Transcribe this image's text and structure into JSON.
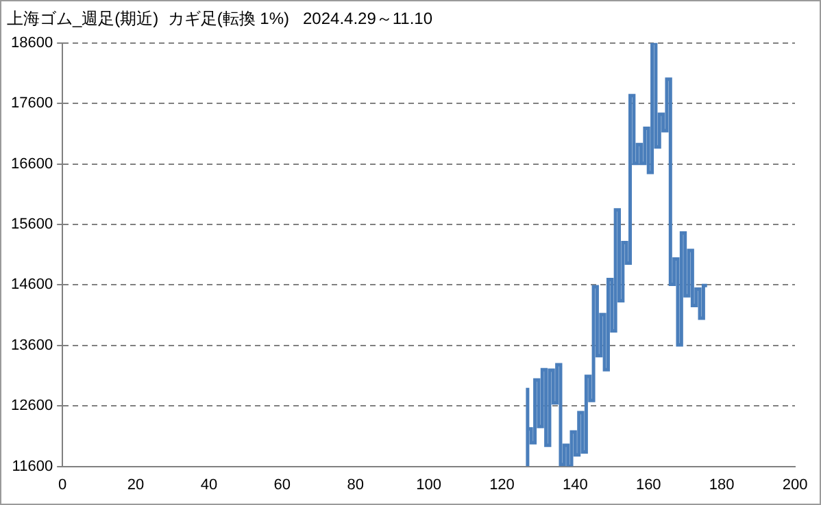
{
  "chart_data": {
    "type": "step",
    "title": "上海ゴム_週足(期近)  カギ足(転換 1%)   2024.4.29～11.10",
    "x": [
      127,
      127,
      128,
      129,
      130,
      131,
      132,
      133,
      134,
      135,
      136,
      137,
      138,
      139,
      140,
      141,
      142,
      143,
      144,
      145,
      146,
      147,
      148,
      149,
      150,
      151,
      152,
      153,
      154,
      155,
      156,
      157,
      158,
      159,
      160,
      161,
      162,
      163,
      164,
      165,
      166,
      167,
      168,
      169,
      170,
      171,
      172,
      173,
      174,
      175,
      176
    ],
    "series": [
      {
        "color": "#4a7ebb",
        "values": [
          12900,
          11600,
          12220,
          11990,
          13030,
          12260,
          13200,
          11950,
          13190,
          12650,
          13280,
          11630,
          11950,
          11600,
          12170,
          11790,
          12490,
          11840,
          13090,
          12690,
          14570,
          13430,
          14110,
          13200,
          14690,
          13840,
          15840,
          14340,
          15300,
          14960,
          17730,
          16610,
          16920,
          16610,
          17190,
          16460,
          18600,
          16880,
          17420,
          17150,
          18000,
          14610,
          15030,
          13610,
          15460,
          14420,
          15170,
          14260,
          14530,
          14050,
          14590
        ]
      }
    ],
    "xlim": [
      0,
      200
    ],
    "xticks": [
      0,
      20,
      40,
      60,
      80,
      100,
      120,
      140,
      160,
      180,
      200
    ],
    "ylim": [
      11600,
      18600
    ],
    "yticks": [
      11600,
      12600,
      13600,
      14600,
      15600,
      16600,
      17600,
      18600
    ],
    "grid": "y",
    "legend": false
  }
}
